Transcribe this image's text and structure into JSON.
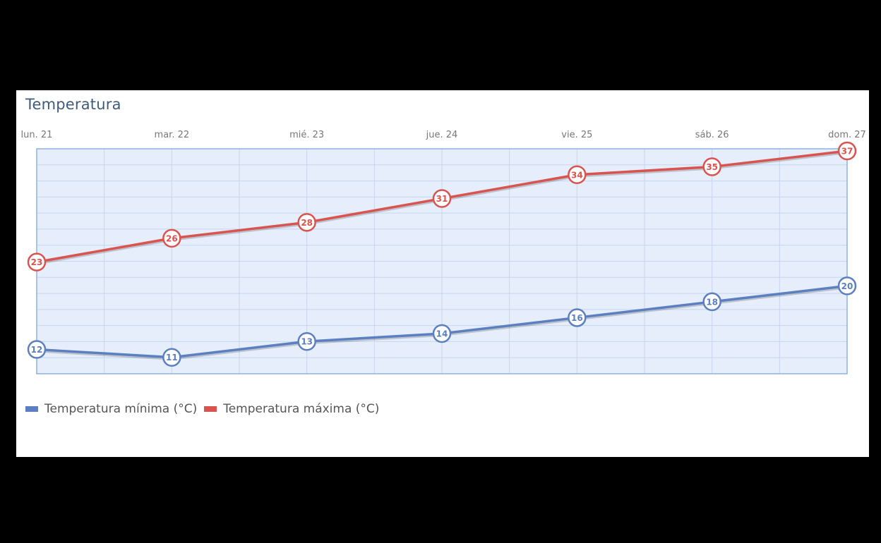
{
  "chart_data": {
    "type": "line",
    "title": "Temperatura",
    "categories": [
      "lun. 21",
      "mar. 22",
      "mié. 23",
      "jue. 24",
      "vie. 25",
      "sáb. 26",
      "dom. 27"
    ],
    "series": [
      {
        "name": "Temperatura mínima (°C)",
        "values": [
          12,
          11,
          13,
          14,
          16,
          18,
          20
        ],
        "color": "#5b7fc0"
      },
      {
        "name": "Temperatura máxima (°C)",
        "values": [
          23,
          26,
          28,
          31,
          34,
          35,
          37
        ],
        "color": "#d9534f"
      }
    ],
    "ylim": [
      10,
      37
    ],
    "grid": true,
    "legend": "bottom-left",
    "x_axis_position": "top",
    "plot_background": "#e6eefb",
    "grid_color": "#c6d5ee",
    "border_color": "#8fb0e0"
  }
}
